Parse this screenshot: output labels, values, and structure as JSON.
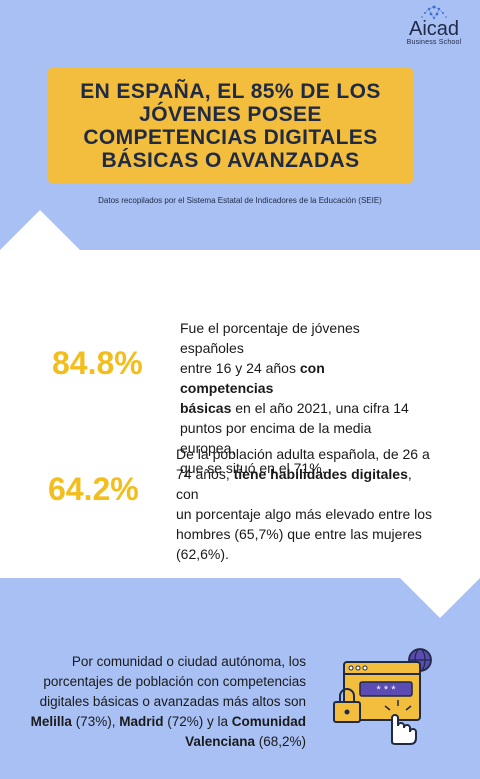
{
  "logo": {
    "word": "Aicad",
    "sub": "Business School"
  },
  "title": {
    "line1": "EN ESPAÑA, EL 85% DE LOS",
    "line2_a": "JÓVENES ",
    "line2_b": "POSEE",
    "line3": "COMPETENCIAS DIGITALES",
    "line4": "BÁSICAS O AVANZADAS"
  },
  "source": "Datos recopilados por el Sistema Estatal de Indicadores de la Educación (SEIE)",
  "stats": [
    {
      "value": "84.8%",
      "t1": "Fue el porcentaje de jóvenes españoles",
      "t2a": "entre 16 y 24 años ",
      "t2b": "con competencias",
      "t3a": "básicas",
      "t3b": " en el año 2021, una cifra 14",
      "t4": "puntos por encima de la media europea,",
      "t5": "que se situó en el 71%."
    },
    {
      "value": "64.2%",
      "t1": "De la población adulta española, de 26 a",
      "t2a": "74 años, ",
      "t2b": "tiene habilidades digitales",
      "t2c": ", con",
      "t3": "un porcentaje algo más elevado entre los",
      "t4": "hombres (65,7%) que entre las mujeres",
      "t5": "(62,6%)."
    }
  ],
  "bottom": {
    "l1": "Por comunidad o ciudad autónoma, los",
    "l2": "porcentajes de población con competencias",
    "l3": "digitales básicas o avanzadas más altos son",
    "l4_a": "Melilla",
    "l4_b": " (73%), ",
    "l4_c": "Madrid",
    "l4_d": " (72%) y la ",
    "l4_e": "Comunidad",
    "l5_a": "Valenciana",
    "l5_b": " (68,2%)"
  },
  "illustration": {
    "icon": "browser-password-lock-icon",
    "password_mask": "* * *"
  },
  "colors": {
    "background": "#a9c0f4",
    "accent": "#f3bd3e",
    "stat": "#f3bd1c",
    "dark": "#1f2a44"
  }
}
